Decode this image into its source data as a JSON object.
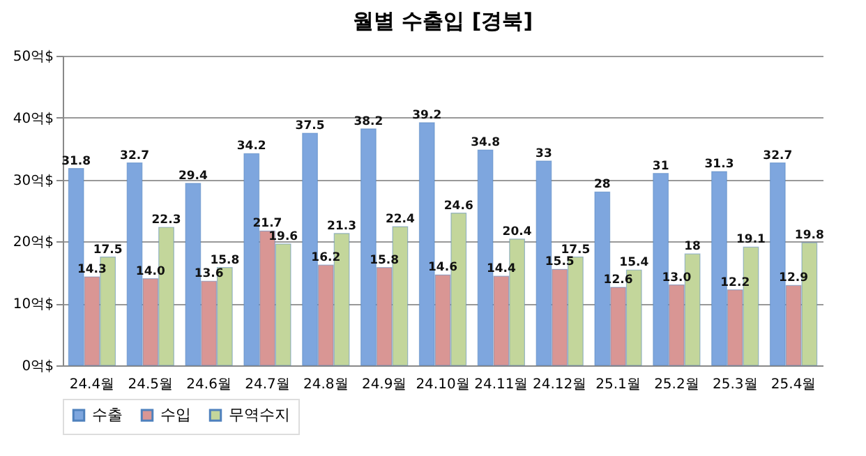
{
  "chart_data": {
    "type": "bar",
    "title": "월별 수출입 [경북]",
    "categories": [
      "24.4월",
      "24.5월",
      "24.6월",
      "24.7월",
      "24.8월",
      "24.9월",
      "24.10월",
      "24.11월",
      "24.12월",
      "25.1월",
      "25.2월",
      "25.3월",
      "25.4월"
    ],
    "series": [
      {
        "name": "수출",
        "color": "#7ea6de",
        "values": [
          31.8,
          32.7,
          29.4,
          34.2,
          37.5,
          38.2,
          39.2,
          34.8,
          33,
          28,
          31,
          31.3,
          32.7
        ],
        "value_labels": [
          "31.8",
          "32.7",
          "29.4",
          "34.2",
          "37.5",
          "38.2",
          "39.2",
          "34.8",
          "33",
          "28",
          "31",
          "31.3",
          "32.7"
        ]
      },
      {
        "name": "수입",
        "color": "#d99694",
        "values": [
          14.3,
          14.0,
          13.6,
          21.7,
          16.2,
          15.8,
          14.6,
          14.4,
          15.5,
          12.6,
          13.0,
          12.2,
          12.9
        ],
        "value_labels": [
          "14.3",
          "14.0",
          "13.6",
          "21.7",
          "16.2",
          "15.8",
          "14.6",
          "14.4",
          "15.5",
          "12.6",
          "13.0",
          "12.2",
          "12.9"
        ]
      },
      {
        "name": "무역수지",
        "color": "#c3d69b",
        "values": [
          17.5,
          22.3,
          15.8,
          19.6,
          21.3,
          22.4,
          24.6,
          20.4,
          17.5,
          15.4,
          18,
          19.1,
          19.8
        ],
        "value_labels": [
          "17.5",
          "22.3",
          "15.8",
          "19.6",
          "21.3",
          "22.4",
          "24.6",
          "20.4",
          "17.5",
          "15.4",
          "18",
          "19.1",
          "19.8"
        ]
      }
    ],
    "ylim": [
      0,
      50
    ],
    "yticks": [
      {
        "value": 0,
        "label": "0억$"
      },
      {
        "value": 10,
        "label": "10억$"
      },
      {
        "value": 20,
        "label": "20억$"
      },
      {
        "value": 30,
        "label": "30억$"
      },
      {
        "value": 40,
        "label": "40억$"
      },
      {
        "value": 50,
        "label": "50억$"
      }
    ],
    "grid": "y",
    "legend": "bottom"
  }
}
